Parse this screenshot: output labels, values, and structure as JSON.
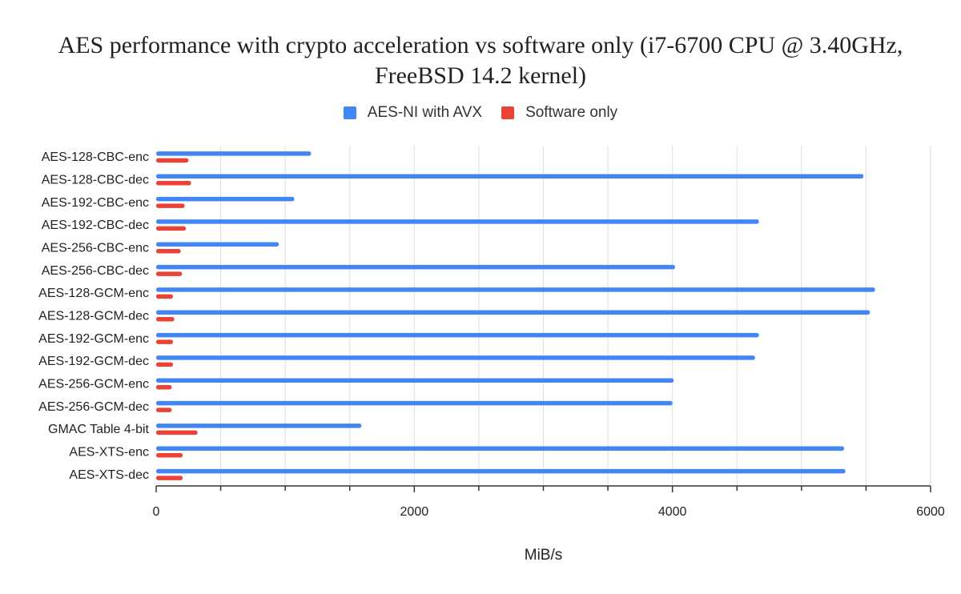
{
  "chart_data": {
    "type": "bar",
    "orientation": "horizontal",
    "title_lines": [
      "AES performance with crypto acceleration vs software only (i7-6700 CPU @ 3.40GHz,",
      "FreeBSD 14.2 kernel)"
    ],
    "xlabel": "MiB/s",
    "ylabel": "",
    "xlim": [
      0,
      6000
    ],
    "xticks": [
      0,
      2000,
      4000,
      6000
    ],
    "grid": true,
    "legend_position": "top",
    "categories": [
      "AES-128-CBC-enc",
      "AES-128-CBC-dec",
      "AES-192-CBC-enc",
      "AES-192-CBC-dec",
      "AES-256-CBC-enc",
      "AES-256-CBC-dec",
      "AES-128-GCM-enc",
      "AES-128-GCM-dec",
      "AES-192-GCM-enc",
      "AES-192-GCM-dec",
      "AES-256-GCM-enc",
      "AES-256-GCM-dec",
      "GMAC Table 4-bit",
      "AES-XTS-enc",
      "AES-XTS-dec"
    ],
    "series": [
      {
        "name": "AES-NI with AVX",
        "color": "#4285f4",
        "values": [
          1200,
          5480,
          1070,
          4670,
          950,
          4020,
          5570,
          5530,
          4670,
          4640,
          4010,
          4000,
          1590,
          5330,
          5340
        ]
      },
      {
        "name": "Software only",
        "color": "#ea4335",
        "values": [
          250,
          270,
          220,
          230,
          190,
          200,
          130,
          140,
          130,
          130,
          120,
          120,
          320,
          205,
          205
        ]
      }
    ]
  }
}
